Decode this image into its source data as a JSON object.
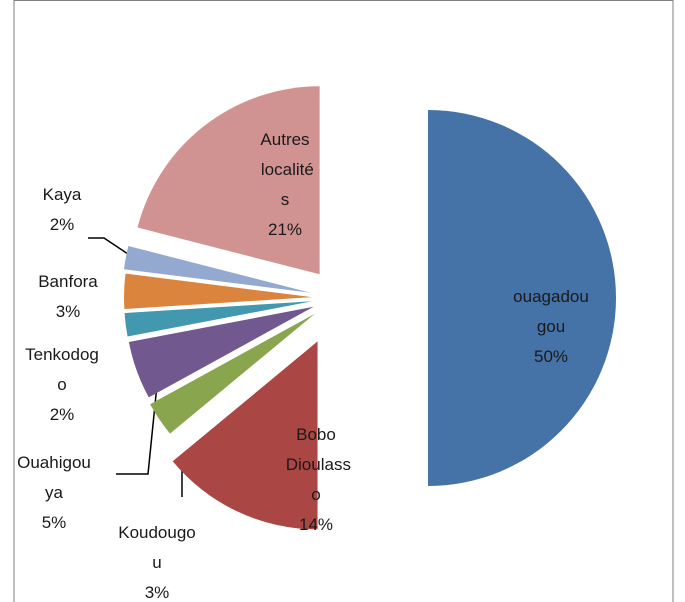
{
  "chart_data": {
    "type": "pie",
    "categories": [
      "ouagadougou",
      "Bobo Dioulasso",
      "Koudougou",
      "Ouahigouya",
      "Tenkodogo",
      "Banfora",
      "Kaya",
      "Autres localités"
    ],
    "values": [
      50,
      14,
      3,
      5,
      2,
      3,
      2,
      21
    ],
    "value_labels": [
      "50%",
      "14%",
      "3%",
      "5%",
      "2%",
      "3%",
      "2%",
      "21%"
    ],
    "colors": [
      "#4572a7",
      "#aa4643",
      "#89a54e",
      "#71588f",
      "#4198af",
      "#db843d",
      "#93a9cf",
      "#d19392"
    ]
  }
}
